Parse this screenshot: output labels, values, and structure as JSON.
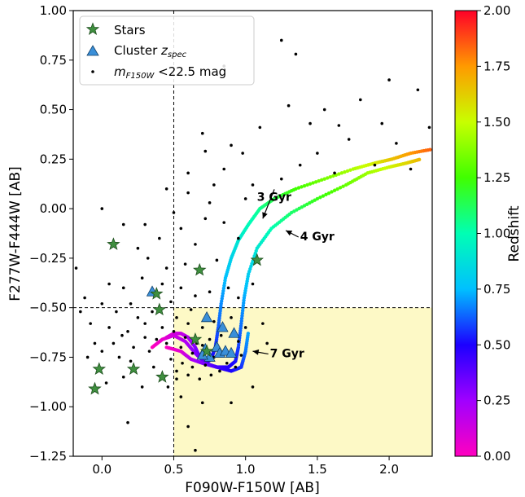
{
  "chart_data": {
    "type": "scatter",
    "xlabel": "F090W-F150W [AB]",
    "ylabel": "F277W-F444W [AB]",
    "xlim": [
      -0.2,
      2.3
    ],
    "ylim": [
      -1.25,
      1.0
    ],
    "x_ticks": [
      "0.0",
      "0.5",
      "1.0",
      "1.5",
      "2.0"
    ],
    "x_tick_values": [
      0.0,
      0.5,
      1.0,
      1.5,
      2.0
    ],
    "y_ticks": [
      "1.00",
      "0.75",
      "0.50",
      "0.25",
      "0.00",
      "−0.25",
      "−0.50",
      "−0.75",
      "−1.00",
      "−1.25"
    ],
    "y_tick_values": [
      1.0,
      0.75,
      0.5,
      0.25,
      0.0,
      -0.25,
      -0.5,
      -0.75,
      -1.0,
      -1.25
    ],
    "grid": false,
    "legend_position": "top-left",
    "legend": {
      "stars": "Stars",
      "cluster_prefix": "Cluster ",
      "cluster_z": "z",
      "cluster_sub": "spec",
      "mag_m": "m",
      "mag_sub": "F150W",
      "mag_suffix": " <22.5 mag"
    },
    "selection_cut": {
      "x_min": 0.5,
      "y_max": -0.5,
      "fill_color": "#fdf9c6"
    },
    "colorbar": {
      "label": "Redshift",
      "range": [
        0.0,
        2.0
      ],
      "ticks": [
        "0.00",
        "0.25",
        "0.50",
        "0.75",
        "1.00",
        "1.25",
        "1.50",
        "1.75",
        "2.00"
      ],
      "tick_values": [
        0.0,
        0.25,
        0.5,
        0.75,
        1.0,
        1.25,
        1.5,
        1.75,
        2.0
      ],
      "colormap": "gist_rainbow"
    },
    "annotations": [
      {
        "text": "3 Gyr",
        "x": 1.08,
        "y": 0.04,
        "arrow_to": [
          1.12,
          -0.05
        ]
      },
      {
        "text": "4 Gyr",
        "x": 1.38,
        "y": -0.16,
        "arrow_to": [
          1.28,
          -0.11
        ]
      },
      {
        "text": "7 Gyr",
        "x": 1.17,
        "y": -0.75,
        "arrow_to": [
          1.05,
          -0.72
        ]
      }
    ],
    "series": [
      {
        "name": "Stars",
        "marker": "star",
        "color": "#3f8f3f",
        "points": [
          [
            0.08,
            -0.18
          ],
          [
            0.4,
            -0.51
          ],
          [
            0.38,
            -0.43
          ],
          [
            0.68,
            -0.31
          ],
          [
            1.08,
            -0.26
          ],
          [
            0.65,
            -0.66
          ],
          [
            -0.02,
            -0.81
          ],
          [
            0.22,
            -0.81
          ],
          [
            0.42,
            -0.85
          ],
          [
            -0.05,
            -0.91
          ],
          [
            0.73,
            -0.72
          ]
        ]
      },
      {
        "name": "Cluster zspec",
        "marker": "triangle",
        "color": "#3a8fd8",
        "points": [
          [
            0.35,
            -0.42
          ],
          [
            0.73,
            -0.55
          ],
          [
            0.84,
            -0.6
          ],
          [
            0.92,
            -0.63
          ],
          [
            0.72,
            -0.71
          ],
          [
            0.8,
            -0.7
          ],
          [
            0.82,
            -0.73
          ],
          [
            0.86,
            -0.72
          ],
          [
            0.9,
            -0.73
          ],
          [
            0.75,
            -0.75
          ],
          [
            0.7,
            -0.74
          ]
        ]
      },
      {
        "name": "mF150W <22.5 mag",
        "marker": "dot",
        "color": "#000000",
        "points": [
          [
            1.25,
            0.85
          ],
          [
            1.35,
            0.78
          ],
          [
            2.0,
            0.65
          ],
          [
            2.2,
            0.6
          ],
          [
            0.85,
            0.72
          ],
          [
            1.55,
            0.5
          ],
          [
            1.8,
            0.55
          ],
          [
            1.65,
            0.42
          ],
          [
            1.95,
            0.43
          ],
          [
            2.28,
            0.41
          ],
          [
            1.45,
            0.43
          ],
          [
            0.98,
            0.28
          ],
          [
            0.7,
            0.38
          ],
          [
            1.1,
            0.41
          ],
          [
            1.3,
            0.52
          ],
          [
            0.6,
            0.18
          ],
          [
            0.72,
            0.29
          ],
          [
            0.9,
            0.32
          ],
          [
            1.05,
            0.12
          ],
          [
            1.25,
            0.15
          ],
          [
            1.38,
            0.22
          ],
          [
            1.5,
            0.28
          ],
          [
            1.62,
            0.18
          ],
          [
            1.9,
            0.22
          ],
          [
            2.15,
            0.2
          ],
          [
            2.05,
            0.33
          ],
          [
            1.72,
            0.35
          ],
          [
            0.85,
            0.2
          ],
          [
            0.78,
            0.12
          ],
          [
            1.0,
            0.05
          ],
          [
            0.6,
            0.08
          ],
          [
            0.75,
            0.03
          ],
          [
            0.45,
            0.1
          ],
          [
            0.5,
            -0.02
          ],
          [
            0.3,
            -0.08
          ],
          [
            0.4,
            -0.15
          ],
          [
            0.55,
            -0.1
          ],
          [
            0.65,
            -0.18
          ],
          [
            0.72,
            -0.05
          ],
          [
            0.85,
            -0.07
          ],
          [
            0.95,
            -0.15
          ],
          [
            0.32,
            -0.25
          ],
          [
            0.45,
            -0.3
          ],
          [
            0.58,
            -0.28
          ],
          [
            0.8,
            -0.26
          ],
          [
            0.28,
            -0.35
          ],
          [
            0.42,
            -0.38
          ],
          [
            0.55,
            -0.4
          ],
          [
            0.65,
            -0.44
          ],
          [
            0.75,
            -0.42
          ],
          [
            0.88,
            -0.4
          ],
          [
            0.15,
            -0.4
          ],
          [
            0.2,
            -0.48
          ],
          [
            0.35,
            -0.52
          ],
          [
            0.48,
            -0.47
          ],
          [
            0.62,
            -0.51
          ],
          [
            0.1,
            -0.52
          ],
          [
            0.3,
            -0.58
          ],
          [
            0.42,
            -0.6
          ],
          [
            0.52,
            -0.55
          ],
          [
            0.6,
            -0.58
          ],
          [
            0.7,
            -0.6
          ],
          [
            0.78,
            -0.57
          ],
          [
            0.9,
            -0.55
          ],
          [
            0.05,
            -0.6
          ],
          [
            0.18,
            -0.62
          ],
          [
            0.25,
            -0.55
          ],
          [
            0.38,
            -0.66
          ],
          [
            0.5,
            -0.62
          ],
          [
            0.58,
            -0.65
          ],
          [
            0.66,
            -0.68
          ],
          [
            0.75,
            -0.66
          ],
          [
            0.83,
            -0.64
          ],
          [
            0.95,
            -0.67
          ],
          [
            1.0,
            -0.6
          ],
          [
            0.08,
            -0.68
          ],
          [
            0.14,
            -0.64
          ],
          [
            0.22,
            -0.7
          ],
          [
            0.3,
            -0.65
          ],
          [
            0.45,
            -0.68
          ],
          [
            0.55,
            -0.7
          ],
          [
            0.63,
            -0.73
          ],
          [
            0.7,
            -0.69
          ],
          [
            0.78,
            -0.75
          ],
          [
            0.87,
            -0.78
          ],
          [
            0.97,
            -0.74
          ],
          [
            -0.05,
            -0.68
          ],
          [
            0.0,
            -0.72
          ],
          [
            0.12,
            -0.75
          ],
          [
            0.2,
            -0.77
          ],
          [
            0.33,
            -0.72
          ],
          [
            0.48,
            -0.76
          ],
          [
            0.56,
            -0.78
          ],
          [
            0.63,
            -0.8
          ],
          [
            0.72,
            -0.79
          ],
          [
            0.82,
            -0.82
          ],
          [
            0.93,
            -0.8
          ],
          [
            0.6,
            -0.84
          ],
          [
            0.68,
            -0.86
          ],
          [
            0.76,
            -0.84
          ],
          [
            0.52,
            -0.86
          ],
          [
            -0.1,
            -0.75
          ],
          [
            -0.08,
            -0.58
          ],
          [
            -0.15,
            -0.52
          ],
          [
            0.0,
            -0.48
          ],
          [
            -0.12,
            -0.45
          ],
          [
            0.05,
            -0.38
          ],
          [
            -0.18,
            -0.3
          ],
          [
            0.0,
            0.0
          ],
          [
            0.15,
            -0.08
          ],
          [
            0.25,
            -0.2
          ],
          [
            0.55,
            -0.95
          ],
          [
            0.7,
            -0.98
          ],
          [
            0.9,
            -0.98
          ],
          [
            1.05,
            -0.9
          ],
          [
            0.6,
            -1.1
          ],
          [
            0.18,
            -1.08
          ],
          [
            0.65,
            -1.22
          ],
          [
            1.15,
            -0.68
          ],
          [
            1.12,
            -0.58
          ],
          [
            0.95,
            -0.45
          ],
          [
            1.05,
            -0.38
          ],
          [
            0.52,
            -0.82
          ],
          [
            0.46,
            -0.9
          ],
          [
            0.36,
            -0.8
          ],
          [
            0.28,
            -0.9
          ],
          [
            0.15,
            -0.85
          ],
          [
            0.03,
            -0.88
          ]
        ]
      }
    ],
    "model_tracks": [
      {
        "name": "3 Gyr",
        "points": [
          [
            0.45,
            -0.65
          ],
          [
            0.5,
            -0.63
          ],
          [
            0.55,
            -0.63
          ],
          [
            0.6,
            -0.65
          ],
          [
            0.65,
            -0.7
          ],
          [
            0.68,
            -0.75
          ],
          [
            0.72,
            -0.78
          ],
          [
            0.76,
            -0.76
          ],
          [
            0.79,
            -0.7
          ],
          [
            0.81,
            -0.6
          ],
          [
            0.83,
            -0.48
          ],
          [
            0.86,
            -0.35
          ],
          [
            0.9,
            -0.25
          ],
          [
            0.95,
            -0.16
          ],
          [
            1.02,
            -0.08
          ],
          [
            1.1,
            0.0
          ],
          [
            1.2,
            0.05
          ],
          [
            1.35,
            0.1
          ],
          [
            1.55,
            0.15
          ],
          [
            1.75,
            0.2
          ],
          [
            1.9,
            0.23
          ],
          [
            2.02,
            0.25
          ],
          [
            2.15,
            0.28
          ],
          [
            2.3,
            0.3
          ]
        ],
        "z": [
          0.08,
          0.1,
          0.15,
          0.2,
          0.3,
          0.38,
          0.45,
          0.5,
          0.55,
          0.62,
          0.68,
          0.75,
          0.82,
          0.9,
          0.98,
          1.05,
          1.15,
          1.25,
          1.35,
          1.45,
          1.55,
          1.65,
          1.75,
          1.85
        ]
      },
      {
        "name": "4 Gyr",
        "points": [
          [
            0.35,
            -0.7
          ],
          [
            0.42,
            -0.66
          ],
          [
            0.5,
            -0.64
          ],
          [
            0.58,
            -0.67
          ],
          [
            0.65,
            -0.73
          ],
          [
            0.72,
            -0.78
          ],
          [
            0.8,
            -0.8
          ],
          [
            0.88,
            -0.8
          ],
          [
            0.93,
            -0.77
          ],
          [
            0.95,
            -0.7
          ],
          [
            0.97,
            -0.58
          ],
          [
            0.99,
            -0.45
          ],
          [
            1.02,
            -0.33
          ],
          [
            1.08,
            -0.2
          ],
          [
            1.18,
            -0.1
          ],
          [
            1.32,
            -0.02
          ],
          [
            1.5,
            0.05
          ],
          [
            1.7,
            0.12
          ],
          [
            1.85,
            0.18
          ],
          [
            2.0,
            0.21
          ],
          [
            2.12,
            0.23
          ],
          [
            2.22,
            0.25
          ]
        ],
        "z": [
          0.0,
          0.05,
          0.12,
          0.2,
          0.3,
          0.38,
          0.44,
          0.48,
          0.52,
          0.58,
          0.65,
          0.72,
          0.8,
          0.9,
          1.0,
          1.1,
          1.22,
          1.32,
          1.42,
          1.52,
          1.6,
          1.68
        ]
      },
      {
        "name": "7 Gyr",
        "points": [
          [
            0.45,
            -0.7
          ],
          [
            0.55,
            -0.72
          ],
          [
            0.62,
            -0.76
          ],
          [
            0.7,
            -0.78
          ],
          [
            0.8,
            -0.8
          ],
          [
            0.9,
            -0.82
          ],
          [
            0.97,
            -0.8
          ],
          [
            1.0,
            -0.72
          ],
          [
            1.02,
            -0.62
          ]
        ],
        "z": [
          0.0,
          0.08,
          0.2,
          0.3,
          0.42,
          0.5,
          0.56,
          0.65,
          0.72
        ]
      }
    ]
  }
}
